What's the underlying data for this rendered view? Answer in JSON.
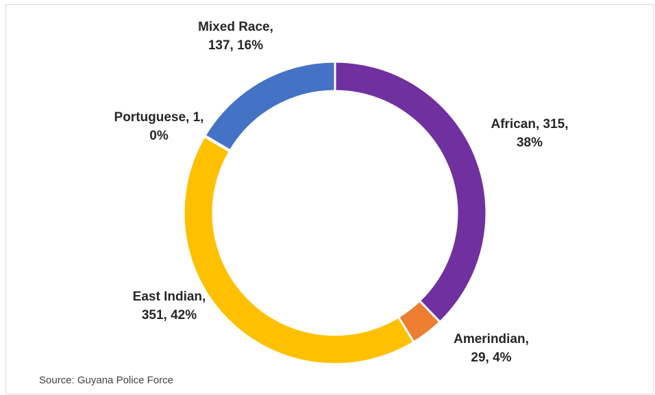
{
  "chart_data": {
    "type": "pie",
    "variant": "donut",
    "categories": [
      "African",
      "Amerindian",
      "East Indian",
      "Portuguese",
      "Mixed Race"
    ],
    "values": [
      315,
      29,
      351,
      1,
      137
    ],
    "percent_labels": [
      "38%",
      "4%",
      "42%",
      "0%",
      "16%"
    ],
    "colors": [
      "#7030a0",
      "#ed7d31",
      "#ffc000",
      "#a5a5a5",
      "#4472c4"
    ],
    "label_lines": [
      [
        "African, 315,",
        "38%"
      ],
      [
        "Amerindian,",
        "29, 4%"
      ],
      [
        "East Indian,",
        "351, 42%"
      ],
      [
        "Portuguese, 1,",
        "0%"
      ],
      [
        "Mixed Race,",
        "137, 16%"
      ]
    ],
    "legend": "none"
  },
  "source_note": "Source: Guyana Police Force"
}
